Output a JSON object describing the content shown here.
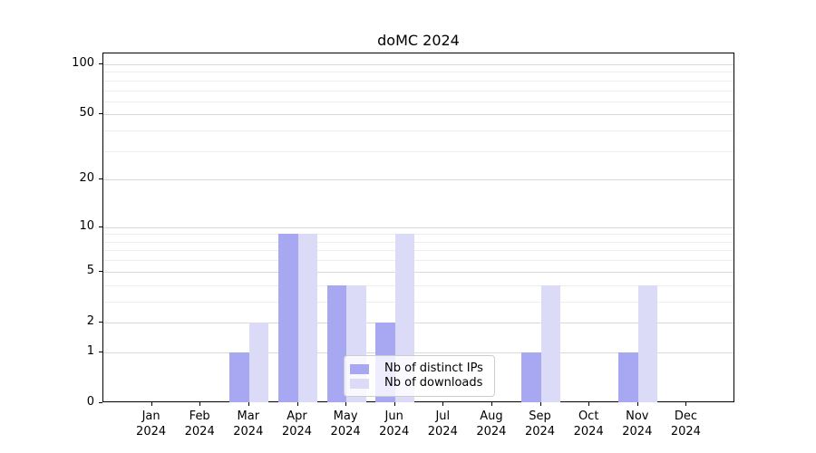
{
  "chart_data": {
    "type": "bar",
    "title": "doMC 2024",
    "categories": [
      "Jan",
      "Feb",
      "Mar",
      "Apr",
      "May",
      "Jun",
      "Jul",
      "Aug",
      "Sep",
      "Oct",
      "Nov",
      "Dec"
    ],
    "x_tick_year": "2024",
    "series": [
      {
        "name": "Nb of distinct IPs",
        "color": "#a7a7f2",
        "values": [
          0,
          0,
          1,
          9,
          4,
          2,
          0,
          0,
          1,
          0,
          1,
          0
        ]
      },
      {
        "name": "Nb of downloads",
        "color": "#dbdbf7",
        "values": [
          0,
          0,
          2,
          9,
          4,
          9,
          0,
          0,
          4,
          0,
          4,
          0
        ]
      }
    ],
    "y_axis": {
      "scale": "log1p",
      "ticks": [
        0,
        1,
        2,
        5,
        10,
        20,
        50,
        100
      ],
      "minor_gridlines": [
        3,
        4,
        6,
        7,
        8,
        9,
        30,
        40,
        60,
        70,
        80,
        90
      ],
      "ylim": [
        0,
        116
      ]
    },
    "x_axis": {
      "label_format": "month over year"
    },
    "legend": {
      "position": "lower center"
    },
    "grid": {
      "major_color": "#d9d9d9",
      "minor_color": "#eeeeee"
    },
    "plot_background": "#ffffff"
  }
}
